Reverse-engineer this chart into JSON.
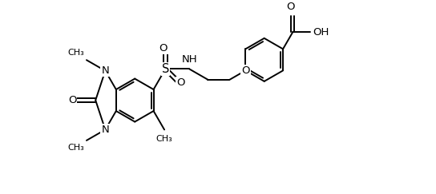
{
  "bg_color": "#ffffff",
  "line_color": "#000000",
  "lw": 1.4,
  "figsize": [
    5.44,
    2.43
  ],
  "dpi": 100,
  "xlim": [
    0,
    10
  ],
  "ylim": [
    0,
    4.5
  ]
}
